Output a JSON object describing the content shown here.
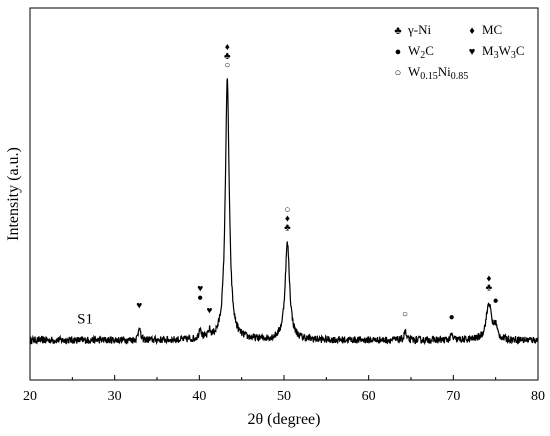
{
  "chart_data": {
    "type": "line",
    "xlabel": "2θ (degree)",
    "ylabel": "Intensity (a.u.)",
    "xlim": [
      20,
      80
    ],
    "ylim": [
      -0.12,
      1.0
    ],
    "xticks": [
      20,
      30,
      40,
      50,
      60,
      70,
      80
    ],
    "x_tick_labels": [
      "20",
      "30",
      "40",
      "50",
      "60",
      "70",
      "80"
    ],
    "y_ticks_shown": false,
    "grid": false,
    "series": [
      {
        "label": "S1",
        "baseline": 0.0,
        "peaks": [
          {
            "x": 32.9,
            "height": 0.045,
            "width": 0.12
          },
          {
            "x": 40.1,
            "height": 0.035,
            "width": 0.15
          },
          {
            "x": 41.2,
            "height": 0.02,
            "width": 0.15
          },
          {
            "x": 43.3,
            "height": 0.78,
            "width": 0.28
          },
          {
            "x": 50.4,
            "height": 0.29,
            "width": 0.32
          },
          {
            "x": 64.3,
            "height": 0.03,
            "width": 0.12
          },
          {
            "x": 69.8,
            "height": 0.015,
            "width": 0.15
          },
          {
            "x": 74.2,
            "height": 0.11,
            "width": 0.38
          },
          {
            "x": 75.0,
            "height": 0.035,
            "width": 0.2
          }
        ]
      }
    ],
    "legend": {
      "placement": "top-right",
      "entries": [
        {
          "symbol": "club",
          "glyph": "♣",
          "text": "γ-Ni"
        },
        {
          "symbol": "diamond",
          "glyph": "♦",
          "text": "MC"
        },
        {
          "symbol": "filled-circle",
          "glyph": "●",
          "text": "W",
          "sub": "2",
          "tail": "C"
        },
        {
          "symbol": "heart",
          "glyph": "♥",
          "text": "M",
          "sub": "3",
          "mid": "W",
          "sub2": "3",
          "tail": "C"
        },
        {
          "symbol": "open-circle",
          "glyph": "○",
          "text": "W",
          "sub": "0.15",
          "mid": "Ni",
          "sub2": "0.85"
        }
      ]
    },
    "peak_markers": [
      {
        "x": 32.9,
        "y": 0.095,
        "symbols": [
          "heart"
        ]
      },
      {
        "x": 40.1,
        "y": 0.12,
        "symbols": [
          "heart",
          "filled-circle"
        ]
      },
      {
        "x": 41.2,
        "y": 0.08,
        "symbols": [
          "heart"
        ]
      },
      {
        "x": 43.3,
        "y": 0.82,
        "symbols": [
          "diamond",
          "club",
          "open-circle"
        ]
      },
      {
        "x": 50.4,
        "y": 0.33,
        "symbols": [
          "open-circle",
          "diamond",
          "club"
        ]
      },
      {
        "x": 64.3,
        "y": 0.07,
        "symbols": [
          "open-circle"
        ]
      },
      {
        "x": 69.8,
        "y": 0.06,
        "symbols": [
          "filled-circle"
        ]
      },
      {
        "x": 74.2,
        "y": 0.15,
        "symbols": [
          "diamond",
          "club"
        ]
      },
      {
        "x": 75.0,
        "y": 0.11,
        "symbols": [
          "filled-circle"
        ]
      }
    ]
  }
}
